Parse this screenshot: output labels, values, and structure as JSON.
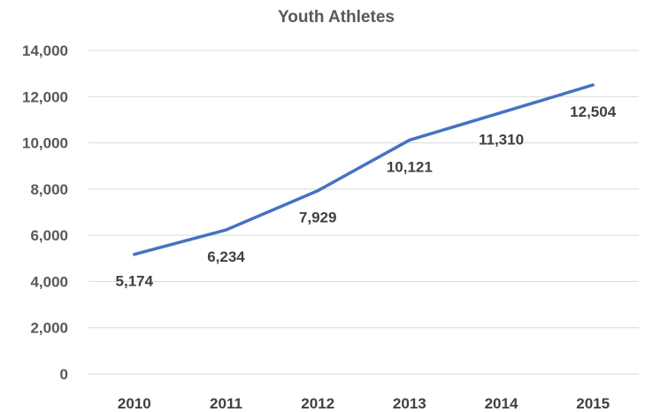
{
  "chart_data": {
    "type": "line",
    "title": "Youth Athletes",
    "xlabel": "",
    "ylabel": "",
    "categories": [
      "2010",
      "2011",
      "2012",
      "2013",
      "2014",
      "2015"
    ],
    "series": [
      {
        "values": [
          5174,
          6234,
          7929,
          10121,
          11310,
          12504
        ],
        "data_labels": [
          "5,174",
          "6,234",
          "7,929",
          "10,121",
          "11,310",
          "12,504"
        ],
        "color": "#4472C4"
      }
    ],
    "ylim": [
      0,
      14000
    ],
    "y_ticks": [
      0,
      2000,
      4000,
      6000,
      8000,
      10000,
      12000,
      14000
    ],
    "y_tick_labels": [
      "0",
      "2,000",
      "4,000",
      "6,000",
      "8,000",
      "10,000",
      "12,000",
      "14,000"
    ],
    "grid": true,
    "legend": "none"
  },
  "colors": {
    "gridline": "#D9D9D9",
    "text": "#595959",
    "line": "#4472C4"
  }
}
